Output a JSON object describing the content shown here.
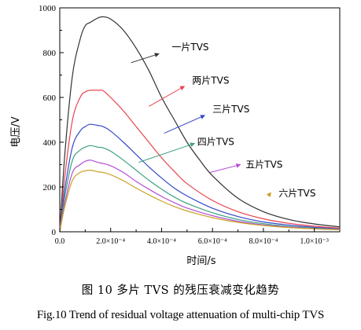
{
  "chart_data": {
    "type": "line",
    "title": "",
    "xlabel": "时间/s",
    "ylabel": "电压/V",
    "xlim": [
      0,
      0.0011
    ],
    "ylim": [
      0,
      1000
    ],
    "x_ticks": [
      0,
      0.0002,
      0.0004,
      0.0006,
      0.0008,
      0.001
    ],
    "x_tick_labels": [
      "0.0",
      "2.0×10⁻⁴",
      "4.0×10⁻⁴",
      "6.0×10⁻⁴",
      "8.0×10⁻⁴",
      "1.0×10⁻³"
    ],
    "y_ticks": [
      0,
      200,
      400,
      600,
      800,
      1000
    ],
    "y_tick_labels": [
      "0",
      "200",
      "400",
      "600",
      "800",
      "1000"
    ],
    "grid": false,
    "legend": "none",
    "series": [
      {
        "label": "一片TVS",
        "color": "#333333",
        "x": [
          0,
          2e-05,
          5e-05,
          8e-05,
          0.0001,
          0.00012,
          0.00015,
          0.00017,
          0.0002,
          0.00025,
          0.0003,
          0.00035,
          0.0004,
          0.00045,
          0.0005,
          0.00055,
          0.0006,
          0.0007,
          0.0008,
          0.0009,
          0.001,
          0.0011
        ],
        "y": [
          0,
          350,
          700,
          860,
          920,
          935,
          955,
          960,
          950,
          900,
          820,
          720,
          600,
          500,
          400,
          320,
          250,
          150,
          90,
          55,
          35,
          22
        ]
      },
      {
        "label": "两片TVS",
        "color": "#e8434d",
        "x": [
          0,
          2e-05,
          5e-05,
          8e-05,
          0.0001,
          0.00012,
          0.00015,
          0.00017,
          0.0002,
          0.00025,
          0.0003,
          0.00035,
          0.0004,
          0.00045,
          0.0005,
          0.0006,
          0.0007,
          0.0008,
          0.0009,
          0.001,
          0.0011
        ],
        "y": [
          0,
          250,
          500,
          600,
          625,
          632,
          632,
          630,
          600,
          540,
          470,
          400,
          330,
          270,
          215,
          140,
          90,
          58,
          38,
          25,
          16
        ]
      },
      {
        "label": "三片TVS",
        "color": "#3548c8",
        "x": [
          0,
          2e-05,
          5e-05,
          8e-05,
          0.0001,
          0.00012,
          0.00015,
          0.00017,
          0.0002,
          0.00025,
          0.0003,
          0.00035,
          0.0004,
          0.00045,
          0.0005,
          0.0006,
          0.0007,
          0.0008,
          0.0009,
          0.001,
          0.0011
        ],
        "y": [
          0,
          190,
          380,
          450,
          470,
          480,
          475,
          470,
          450,
          400,
          345,
          290,
          240,
          195,
          160,
          105,
          68,
          44,
          30,
          20,
          13
        ]
      },
      {
        "label": "四片TVS",
        "color": "#3aa17e",
        "x": [
          0,
          2e-05,
          5e-05,
          8e-05,
          0.0001,
          0.00012,
          0.00015,
          0.00017,
          0.0002,
          0.00025,
          0.0003,
          0.00035,
          0.0004,
          0.00045,
          0.0005,
          0.0006,
          0.0007,
          0.0008,
          0.0009,
          0.001,
          0.0011
        ],
        "y": [
          0,
          160,
          320,
          365,
          378,
          385,
          378,
          375,
          360,
          320,
          275,
          230,
          190,
          155,
          127,
          85,
          55,
          36,
          24,
          16,
          11
        ]
      },
      {
        "label": "五片TVS",
        "color": "#b44fd6",
        "x": [
          0,
          2e-05,
          5e-05,
          8e-05,
          0.0001,
          0.00012,
          0.00015,
          0.00017,
          0.0002,
          0.00025,
          0.0003,
          0.00035,
          0.0004,
          0.00045,
          0.0005,
          0.0006,
          0.0007,
          0.0008,
          0.0009,
          0.001,
          0.0011
        ],
        "y": [
          0,
          130,
          265,
          300,
          315,
          320,
          310,
          305,
          295,
          265,
          225,
          190,
          158,
          130,
          106,
          72,
          47,
          31,
          21,
          14,
          10
        ]
      },
      {
        "label": "六片TVS",
        "color": "#c9a227",
        "x": [
          0,
          2e-05,
          5e-05,
          8e-05,
          0.0001,
          0.00012,
          0.00015,
          0.00017,
          0.0002,
          0.00025,
          0.0003,
          0.00035,
          0.0004,
          0.00045,
          0.0005,
          0.0006,
          0.0007,
          0.0008,
          0.0009,
          0.001,
          0.0011
        ],
        "y": [
          0,
          115,
          230,
          265,
          272,
          275,
          268,
          265,
          255,
          228,
          195,
          165,
          137,
          113,
          93,
          63,
          42,
          28,
          19,
          13,
          9
        ]
      }
    ],
    "annotations": [
      {
        "text": "一片TVS",
        "series": 0,
        "arrow_from": [
          0.00039,
          795
        ],
        "arrow_to": [
          0.00028,
          755
        ],
        "text_at": [
          0.00044,
          825
        ]
      },
      {
        "text": "两片TVS",
        "series": 1,
        "arrow_from": [
          0.00049,
          650
        ],
        "arrow_to": [
          0.00035,
          560
        ],
        "text_at": [
          0.00052,
          675
        ]
      },
      {
        "text": "三片TVS",
        "series": 2,
        "arrow_from": [
          0.00057,
          520
        ],
        "arrow_to": [
          0.00041,
          440
        ],
        "text_at": [
          0.0006,
          548
        ]
      },
      {
        "text": "四片TVS",
        "series": 3,
        "arrow_from": [
          0.00053,
          395
        ],
        "arrow_to": [
          0.00031,
          310
        ],
        "text_at": [
          0.00054,
          402
        ]
      },
      {
        "text": "五片TVS",
        "series": 4,
        "arrow_from": [
          0.00071,
          300
        ],
        "arrow_to": [
          0.00059,
          265
        ],
        "text_at": [
          0.00073,
          300
        ]
      },
      {
        "text": "六片TVS",
        "series": 5,
        "arrow_from": [
          0.00083,
          175
        ],
        "arrow_to": [
          0.00082,
          162
        ],
        "text_at": [
          0.00086,
          172
        ]
      }
    ]
  },
  "caption": {
    "cn": "图 10 多片 TVS 的残压衰减变化趋势",
    "en": "Fig.10 Trend of residual voltage attenuation of multi-chip TVS"
  }
}
